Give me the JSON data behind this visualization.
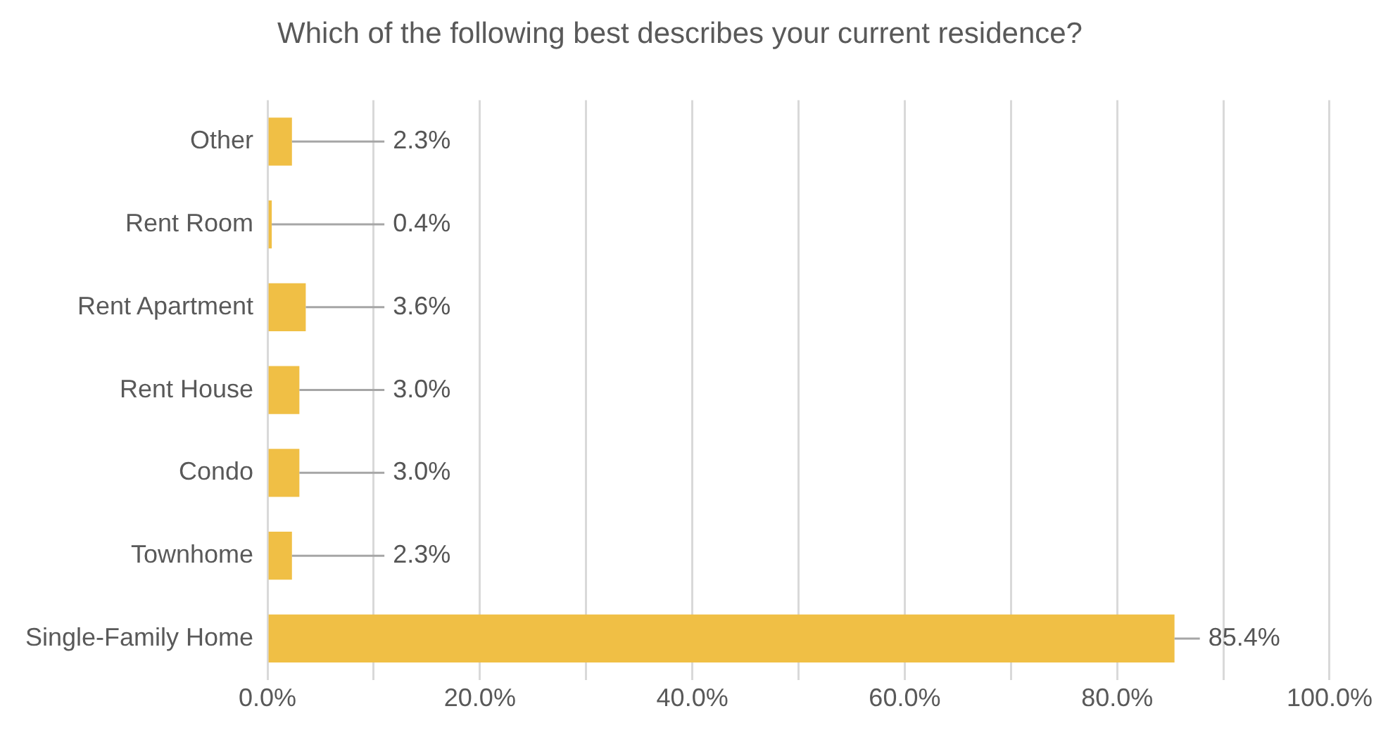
{
  "chart_data": {
    "type": "bar",
    "orientation": "horizontal",
    "title": "Which of the following best describes your current residence?",
    "categories": [
      "Other",
      "Rent Room",
      "Rent Apartment",
      "Rent House",
      "Condo",
      "Townhome",
      "Single-Family Home"
    ],
    "values": [
      2.3,
      0.4,
      3.6,
      3.0,
      3.0,
      2.3,
      85.4
    ],
    "value_labels": [
      "2.3%",
      "0.4%",
      "3.6%",
      "3.0%",
      "3.0%",
      "2.3%",
      "85.4%"
    ],
    "color": "#f0bf45",
    "xlim": [
      0,
      100
    ],
    "xticks": [
      {
        "value": 0,
        "label": "0.0%"
      },
      {
        "value": 10,
        "label": null
      },
      {
        "value": 20,
        "label": "20.0%"
      },
      {
        "value": 30,
        "label": null
      },
      {
        "value": 40,
        "label": "40.0%"
      },
      {
        "value": 50,
        "label": null
      },
      {
        "value": 60,
        "label": "60.0%"
      },
      {
        "value": 70,
        "label": null
      },
      {
        "value": 80,
        "label": "80.0%"
      },
      {
        "value": 90,
        "label": null
      },
      {
        "value": 100,
        "label": "100.0%"
      }
    ],
    "grid": "x",
    "legend": false
  }
}
